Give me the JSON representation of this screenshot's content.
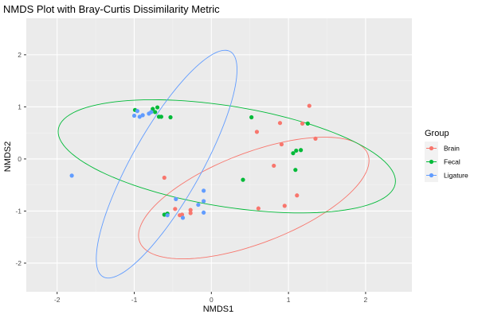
{
  "chart_data": {
    "type": "scatter",
    "title": "NMDS Plot with Bray-Curtis Dissimilarity Metric",
    "xlabel": "NMDS1",
    "ylabel": "NMDS2",
    "xlim": [
      -2.4,
      2.6
    ],
    "ylim": [
      -2.55,
      2.7
    ],
    "xticks": [
      -2,
      -1,
      0,
      1,
      2
    ],
    "yticks": [
      -2,
      -1,
      0,
      1,
      2
    ],
    "xtick_labels": [
      "-2",
      "-1",
      "0",
      "1",
      "2"
    ],
    "ytick_labels": [
      "-2",
      "-1",
      "0",
      "1",
      "2"
    ],
    "grid": true,
    "legend_position": "right",
    "legend_title": "Group",
    "series": [
      {
        "name": "Brain",
        "color": "#F8766D",
        "points": [
          [
            1.27,
            1.02
          ],
          [
            1.18,
            0.68
          ],
          [
            0.89,
            0.69
          ],
          [
            1.35,
            0.39
          ],
          [
            0.59,
            0.52
          ],
          [
            0.91,
            0.28
          ],
          [
            0.81,
            -0.13
          ],
          [
            1.11,
            -0.7
          ],
          [
            0.95,
            -0.9
          ],
          [
            0.61,
            -0.95
          ],
          [
            -0.61,
            -0.36
          ],
          [
            -0.47,
            -0.96
          ],
          [
            -0.41,
            -1.08
          ],
          [
            -0.38,
            -1.07
          ],
          [
            -0.27,
            -0.98
          ],
          [
            -0.27,
            -1.04
          ]
        ],
        "ellipse": {
          "center": [
            0.55,
            -0.75
          ],
          "rx": 1.72,
          "ry": 0.8,
          "angle_deg": 34
        }
      },
      {
        "name": "Fecal",
        "color": "#00BA38",
        "points": [
          [
            -0.99,
            0.94
          ],
          [
            -0.76,
            0.96
          ],
          [
            -0.7,
            0.99
          ],
          [
            -0.73,
            0.9
          ],
          [
            -0.68,
            0.81
          ],
          [
            -0.65,
            0.81
          ],
          [
            -0.53,
            0.8
          ],
          [
            0.52,
            0.8
          ],
          [
            1.25,
            0.68
          ],
          [
            1.1,
            0.16
          ],
          [
            1.06,
            0.11
          ],
          [
            1.16,
            0.17
          ],
          [
            1.09,
            -0.21
          ],
          [
            0.41,
            -0.4
          ],
          [
            -0.57,
            -1.05
          ],
          [
            -0.61,
            -1.07
          ]
        ],
        "ellipse": {
          "center": [
            0.2,
            0.05
          ],
          "rx": 2.25,
          "ry": 0.95,
          "angle_deg": -15
        }
      },
      {
        "name": "Ligature",
        "color": "#619CFF",
        "points": [
          [
            -1.0,
            0.83
          ],
          [
            -0.96,
            0.92
          ],
          [
            -0.93,
            0.81
          ],
          [
            -0.89,
            0.84
          ],
          [
            -0.81,
            0.87
          ],
          [
            -0.78,
            0.9
          ],
          [
            -1.81,
            -0.32
          ],
          [
            -0.46,
            -0.77
          ],
          [
            -0.37,
            -1.13
          ],
          [
            -0.17,
            -0.88
          ],
          [
            -0.1,
            -0.61
          ],
          [
            -0.1,
            -0.81
          ],
          [
            -0.1,
            -1.03
          ],
          [
            -0.57,
            -1.08
          ]
        ],
        "ellipse": {
          "center": [
            -0.58,
            -0.1
          ],
          "rx": 2.32,
          "ry": 0.48,
          "angle_deg": 70
        }
      }
    ]
  }
}
